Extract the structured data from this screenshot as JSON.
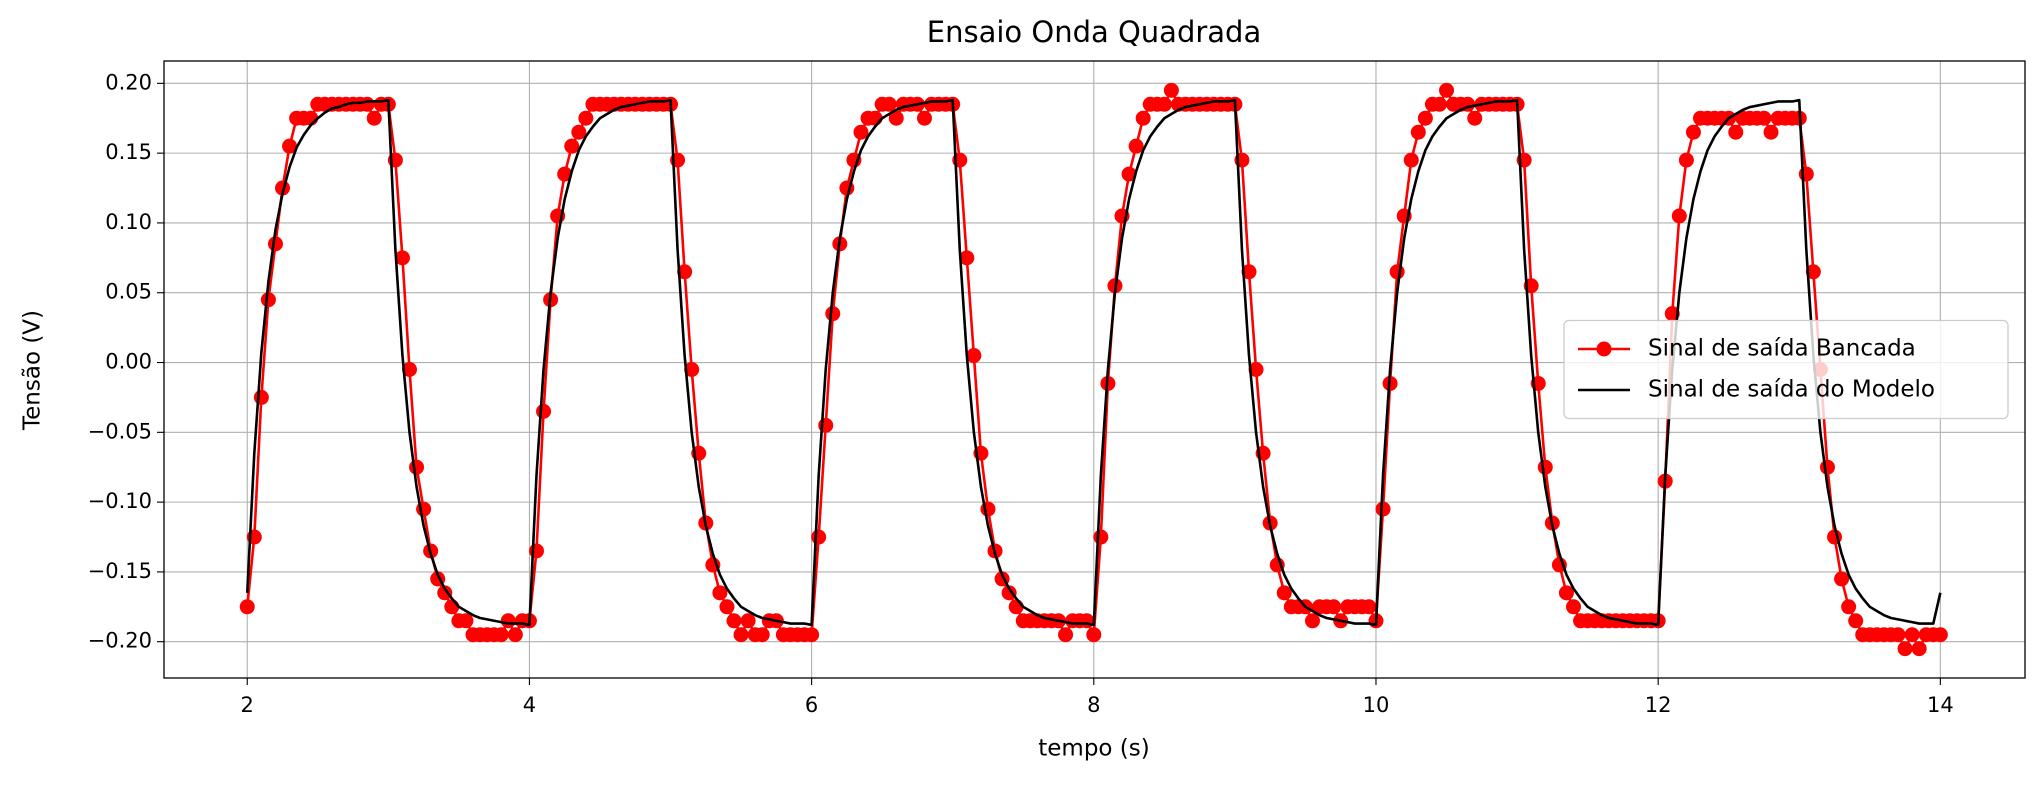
{
  "chart_data": {
    "type": "line",
    "title": "Ensaio Onda Quadrada",
    "x_label": "tempo (s)",
    "y_label": "Tensão (V)",
    "xlim": [
      1.41,
      14.6
    ],
    "ylim": [
      -0.226,
      0.216
    ],
    "xticks": [
      2,
      4,
      6,
      8,
      10,
      12,
      14
    ],
    "yticks": [
      {
        "value": 0.2,
        "label": "0.20"
      },
      {
        "value": 0.15,
        "label": "0.15"
      },
      {
        "value": 0.1,
        "label": "0.10"
      },
      {
        "value": 0.05,
        "label": "0.05"
      },
      {
        "value": 0,
        "label": "0.00"
      },
      {
        "value": -0.05,
        "label": "−0.05"
      },
      {
        "value": -0.1,
        "label": "−0.10"
      },
      {
        "value": -0.15,
        "label": "−0.15"
      },
      {
        "value": -0.2,
        "label": "−0.20"
      }
    ],
    "grid": true,
    "legend": "center right",
    "x": [
      2,
      2.05,
      2.1,
      2.15,
      2.2,
      2.25,
      2.3,
      2.35,
      2.4,
      2.45,
      2.5,
      2.55,
      2.6,
      2.65,
      2.7,
      2.75,
      2.8,
      2.85,
      2.9,
      2.95,
      3,
      3.05,
      3.1,
      3.15,
      3.2,
      3.25,
      3.3,
      3.35,
      3.4,
      3.45,
      3.5,
      3.55,
      3.6,
      3.65,
      3.7,
      3.75,
      3.8,
      3.85,
      3.9,
      3.95,
      4,
      4.05,
      4.1,
      4.15,
      4.2,
      4.25,
      4.3,
      4.35,
      4.4,
      4.45,
      4.5,
      4.55,
      4.6,
      4.65,
      4.7,
      4.75,
      4.8,
      4.85,
      4.9,
      4.95,
      5,
      5.05,
      5.1,
      5.15,
      5.2,
      5.25,
      5.3,
      5.35,
      5.4,
      5.45,
      5.5,
      5.55,
      5.6,
      5.65,
      5.7,
      5.75,
      5.8,
      5.85,
      5.9,
      5.95,
      6,
      6.05,
      6.1,
      6.15,
      6.2,
      6.25,
      6.3,
      6.35,
      6.4,
      6.45,
      6.5,
      6.55,
      6.6,
      6.65,
      6.7,
      6.75,
      6.8,
      6.85,
      6.9,
      6.95,
      7,
      7.05,
      7.1,
      7.15,
      7.2,
      7.25,
      7.3,
      7.35,
      7.4,
      7.45,
      7.5,
      7.55,
      7.6,
      7.65,
      7.7,
      7.75,
      7.8,
      7.85,
      7.9,
      7.95,
      8,
      8.05,
      8.1,
      8.15,
      8.2,
      8.25,
      8.3,
      8.35,
      8.4,
      8.45,
      8.5,
      8.55,
      8.6,
      8.65,
      8.7,
      8.75,
      8.8,
      8.85,
      8.9,
      8.95,
      9,
      9.05,
      9.1,
      9.15,
      9.2,
      9.25,
      9.3,
      9.35,
      9.4,
      9.45,
      9.5,
      9.55,
      9.6,
      9.65,
      9.7,
      9.75,
      9.8,
      9.85,
      9.9,
      9.95,
      10,
      10.05,
      10.1,
      10.15,
      10.2,
      10.25,
      10.3,
      10.35,
      10.4,
      10.45,
      10.5,
      10.55,
      10.6,
      10.65,
      10.7,
      10.75,
      10.8,
      10.85,
      10.9,
      10.95,
      11,
      11.05,
      11.1,
      11.15,
      11.2,
      11.25,
      11.3,
      11.35,
      11.4,
      11.45,
      11.5,
      11.55,
      11.6,
      11.65,
      11.7,
      11.75,
      11.8,
      11.85,
      11.9,
      11.95,
      12,
      12.05,
      12.1,
      12.15,
      12.2,
      12.25,
      12.3,
      12.35,
      12.4,
      12.45,
      12.5,
      12.55,
      12.6,
      12.65,
      12.7,
      12.75,
      12.8,
      12.85,
      12.9,
      12.95,
      13,
      13.05,
      13.1,
      13.15,
      13.2,
      13.25,
      13.3,
      13.35,
      13.4,
      13.45,
      13.5,
      13.55,
      13.6,
      13.65,
      13.7,
      13.75,
      13.8,
      13.85,
      13.9,
      13.95,
      14
    ],
    "series": [
      {
        "name": "Sinal de saída Bancada",
        "color": "#ff0000",
        "marker": true,
        "values": [
          -0.175,
          -0.125,
          -0.025,
          0.045,
          0.085,
          0.125,
          0.155,
          0.175,
          0.175,
          0.175,
          0.185,
          0.185,
          0.185,
          0.185,
          0.185,
          0.185,
          0.185,
          0.185,
          0.175,
          0.185,
          0.185,
          0.145,
          0.075,
          -0.005,
          -0.075,
          -0.105,
          -0.135,
          -0.155,
          -0.165,
          -0.175,
          -0.185,
          -0.185,
          -0.195,
          -0.195,
          -0.195,
          -0.195,
          -0.195,
          -0.185,
          -0.195,
          -0.185,
          -0.185,
          -0.135,
          -0.035,
          0.045,
          0.105,
          0.135,
          0.155,
          0.165,
          0.175,
          0.185,
          0.185,
          0.185,
          0.185,
          0.185,
          0.185,
          0.185,
          0.185,
          0.185,
          0.185,
          0.185,
          0.185,
          0.145,
          0.065,
          -0.005,
          -0.065,
          -0.115,
          -0.145,
          -0.165,
          -0.175,
          -0.185,
          -0.195,
          -0.185,
          -0.195,
          -0.195,
          -0.185,
          -0.185,
          -0.195,
          -0.195,
          -0.195,
          -0.195,
          -0.195,
          -0.125,
          -0.045,
          0.035,
          0.085,
          0.125,
          0.145,
          0.165,
          0.175,
          0.175,
          0.185,
          0.185,
          0.175,
          0.185,
          0.185,
          0.185,
          0.175,
          0.185,
          0.185,
          0.185,
          0.185,
          0.145,
          0.075,
          0.005,
          -0.065,
          -0.105,
          -0.135,
          -0.155,
          -0.165,
          -0.175,
          -0.185,
          -0.185,
          -0.185,
          -0.185,
          -0.185,
          -0.185,
          -0.195,
          -0.185,
          -0.185,
          -0.185,
          -0.195,
          -0.125,
          -0.015,
          0.055,
          0.105,
          0.135,
          0.155,
          0.175,
          0.185,
          0.185,
          0.185,
          0.195,
          0.185,
          0.185,
          0.185,
          0.185,
          0.185,
          0.185,
          0.185,
          0.185,
          0.185,
          0.145,
          0.065,
          -0.005,
          -0.065,
          -0.115,
          -0.145,
          -0.165,
          -0.175,
          -0.175,
          -0.175,
          -0.185,
          -0.175,
          -0.175,
          -0.175,
          -0.185,
          -0.175,
          -0.175,
          -0.175,
          -0.175,
          -0.185,
          -0.105,
          -0.015,
          0.065,
          0.105,
          0.145,
          0.165,
          0.175,
          0.185,
          0.185,
          0.195,
          0.185,
          0.185,
          0.185,
          0.175,
          0.185,
          0.185,
          0.185,
          0.185,
          0.185,
          0.185,
          0.145,
          0.055,
          -0.015,
          -0.075,
          -0.115,
          -0.145,
          -0.165,
          -0.175,
          -0.185,
          -0.185,
          -0.185,
          -0.185,
          -0.185,
          -0.185,
          -0.185,
          -0.185,
          -0.185,
          -0.185,
          -0.185,
          -0.185,
          -0.085,
          0.035,
          0.105,
          0.145,
          0.165,
          0.175,
          0.175,
          0.175,
          0.175,
          0.175,
          0.165,
          0.175,
          0.175,
          0.175,
          0.175,
          0.165,
          0.175,
          0.175,
          0.175,
          0.175,
          0.135,
          0.065,
          -0.005,
          -0.075,
          -0.125,
          -0.155,
          -0.175,
          -0.185,
          -0.195,
          -0.195,
          -0.195,
          -0.195,
          -0.195,
          -0.195,
          -0.205,
          -0.195,
          -0.205,
          -0.195,
          -0.195,
          -0.195
        ]
      },
      {
        "name": "Sinal de saída do Modelo",
        "color": "#000000",
        "marker": false,
        "values": [
          -0.165,
          -0.065,
          0.007,
          0.058,
          0.095,
          0.121,
          0.14,
          0.154,
          0.163,
          0.17,
          0.175,
          0.179,
          0.182,
          0.183,
          0.185,
          0.186,
          0.186,
          0.187,
          0.187,
          0.187,
          0.188,
          0.081,
          0.005,
          -0.05,
          -0.089,
          -0.117,
          -0.137,
          -0.152,
          -0.162,
          -0.169,
          -0.175,
          -0.178,
          -0.181,
          -0.183,
          -0.184,
          -0.185,
          -0.186,
          -0.187,
          -0.187,
          -0.187,
          -0.188,
          -0.081,
          -0.005,
          0.05,
          0.089,
          0.117,
          0.137,
          0.152,
          0.162,
          0.169,
          0.175,
          0.178,
          0.181,
          0.183,
          0.184,
          0.185,
          0.186,
          0.187,
          0.187,
          0.187,
          0.188,
          0.081,
          0.005,
          -0.05,
          -0.089,
          -0.117,
          -0.137,
          -0.152,
          -0.162,
          -0.169,
          -0.175,
          -0.178,
          -0.181,
          -0.183,
          -0.184,
          -0.185,
          -0.186,
          -0.187,
          -0.187,
          -0.187,
          -0.188,
          -0.081,
          -0.005,
          0.05,
          0.089,
          0.117,
          0.137,
          0.152,
          0.162,
          0.169,
          0.175,
          0.178,
          0.181,
          0.183,
          0.184,
          0.185,
          0.186,
          0.187,
          0.187,
          0.187,
          0.188,
          0.081,
          0.005,
          -0.05,
          -0.089,
          -0.117,
          -0.137,
          -0.152,
          -0.162,
          -0.169,
          -0.175,
          -0.178,
          -0.181,
          -0.183,
          -0.184,
          -0.185,
          -0.186,
          -0.187,
          -0.187,
          -0.187,
          -0.188,
          -0.081,
          -0.005,
          0.05,
          0.089,
          0.117,
          0.137,
          0.152,
          0.162,
          0.169,
          0.175,
          0.178,
          0.181,
          0.183,
          0.184,
          0.185,
          0.186,
          0.187,
          0.187,
          0.187,
          0.188,
          0.081,
          0.005,
          -0.05,
          -0.089,
          -0.117,
          -0.137,
          -0.152,
          -0.162,
          -0.169,
          -0.175,
          -0.178,
          -0.181,
          -0.183,
          -0.184,
          -0.185,
          -0.186,
          -0.187,
          -0.187,
          -0.187,
          -0.188,
          -0.081,
          -0.005,
          0.05,
          0.089,
          0.117,
          0.137,
          0.152,
          0.162,
          0.169,
          0.175,
          0.178,
          0.181,
          0.183,
          0.184,
          0.185,
          0.186,
          0.187,
          0.187,
          0.187,
          0.188,
          0.081,
          0.005,
          -0.05,
          -0.089,
          -0.117,
          -0.137,
          -0.152,
          -0.162,
          -0.169,
          -0.175,
          -0.178,
          -0.181,
          -0.183,
          -0.184,
          -0.185,
          -0.186,
          -0.187,
          -0.187,
          -0.187,
          -0.188,
          -0.081,
          -0.005,
          0.05,
          0.089,
          0.117,
          0.137,
          0.152,
          0.162,
          0.169,
          0.175,
          0.178,
          0.181,
          0.183,
          0.184,
          0.185,
          0.186,
          0.187,
          0.187,
          0.187,
          0.188,
          0.081,
          0.005,
          -0.05,
          -0.089,
          -0.117,
          -0.137,
          -0.152,
          -0.162,
          -0.169,
          -0.175,
          -0.178,
          -0.181,
          -0.183,
          -0.184,
          -0.185,
          -0.186,
          -0.187,
          -0.187,
          -0.187,
          -0.165
        ]
      }
    ]
  }
}
